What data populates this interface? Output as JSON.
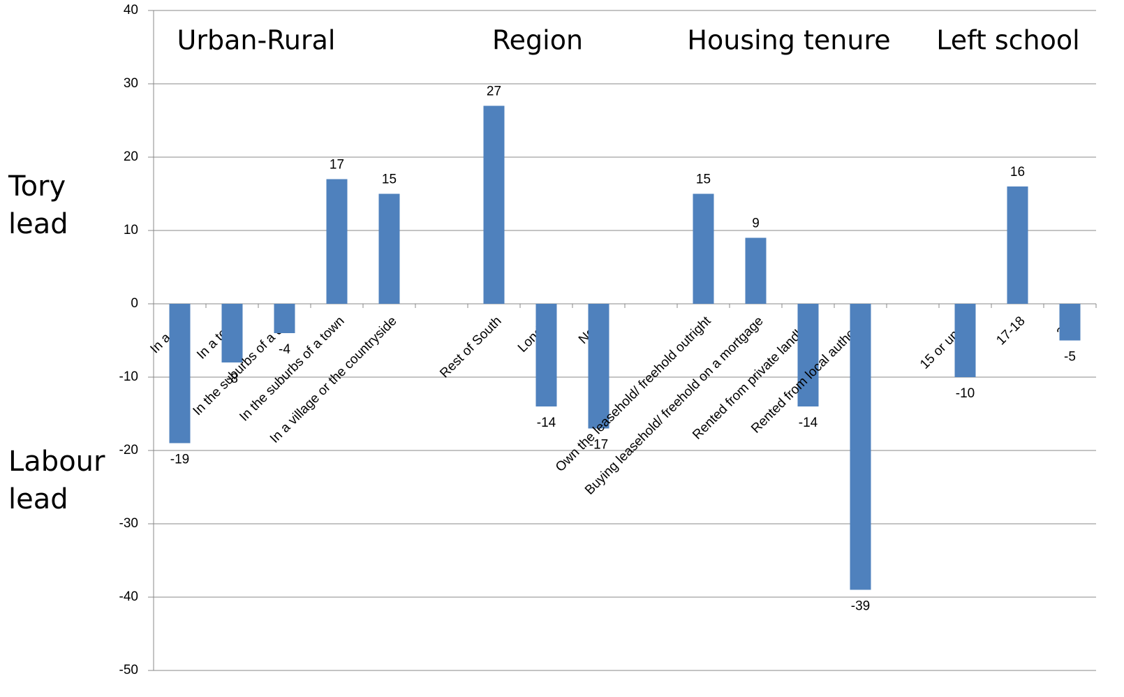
{
  "chart_data": {
    "type": "bar",
    "categories": [
      "In a city",
      "In a town",
      "In the suburbs of a city",
      "In the suburbs of a town",
      "In a village or the countryside",
      null,
      "Rest of South",
      "London",
      "North",
      null,
      "Own the leasehold/ freehold outright",
      "Buying leasehold/ freehold on a mortgage",
      "Rented from private landlord",
      "Rented from local authority",
      null,
      "15 or under",
      "17-18",
      "20+"
    ],
    "values": [
      -19,
      -8,
      -4,
      17,
      15,
      null,
      27,
      -14,
      -17,
      null,
      15,
      9,
      -14,
      -39,
      null,
      -10,
      16,
      -5
    ],
    "color": "#4f81bd",
    "ylim": [
      -50,
      40
    ],
    "yticks": [
      -50,
      -40,
      -30,
      -20,
      -10,
      0,
      10,
      20,
      30,
      40
    ],
    "grid": true,
    "annotations": [
      "Urban-Rural",
      "Region",
      "Housing tenure",
      "Left school"
    ],
    "y_annotations": [
      "Tory lead",
      "Labour lead"
    ]
  }
}
